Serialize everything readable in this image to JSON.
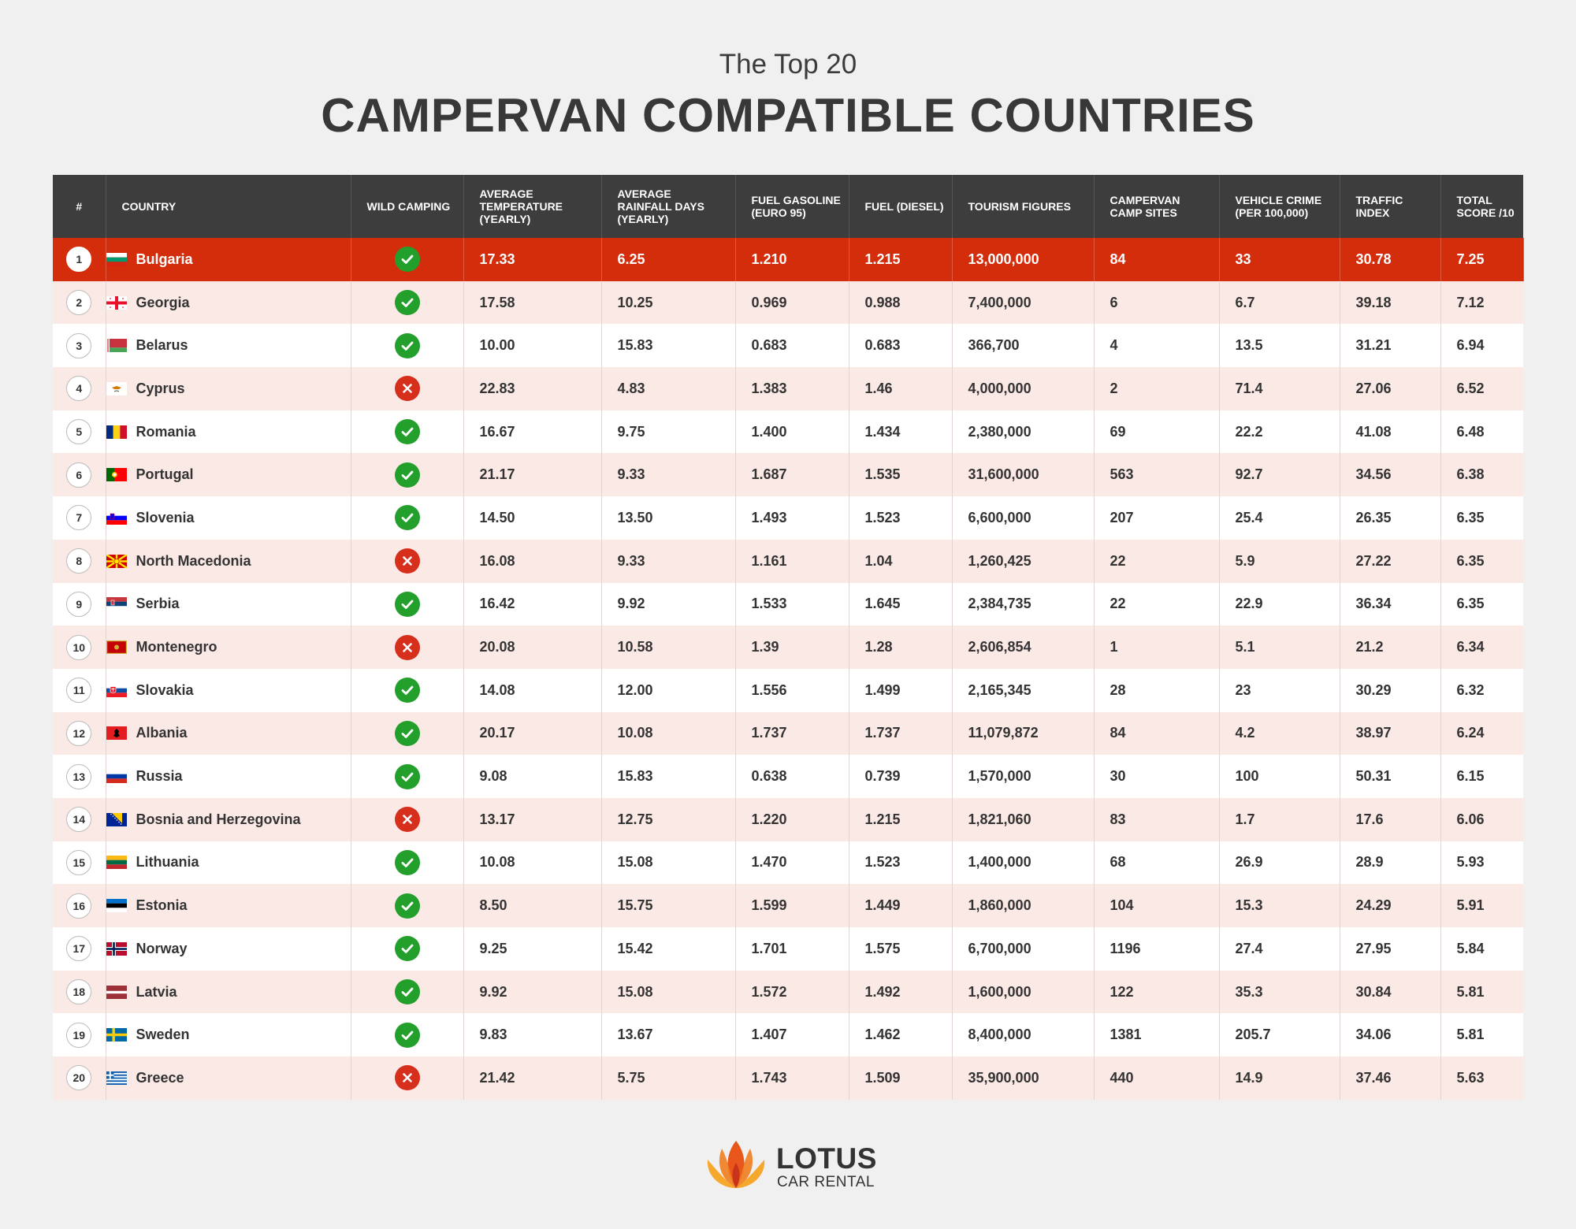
{
  "header": {
    "subtitle": "The Top 20",
    "title": "CAMPERVAN COMPATIBLE COUNTRIES"
  },
  "table": {
    "columns": [
      "#",
      "COUNTRY",
      "WILD CAMPING",
      "AVERAGE TEMPERATURE (YEARLY)",
      "AVERAGE RAINFALL DAYS (YEARLY)",
      "FUEL GASOLINE (EURO 95)",
      "FUEL (DIESEL)",
      "TOURISM FIGURES",
      "CAMPERVAN CAMP SITES",
      "VEHICLE CRIME (PER 100,000)",
      "TRAFFIC INDEX",
      "TOTAL SCORE /10"
    ],
    "rows": [
      {
        "rank": "1",
        "country": "Bulgaria",
        "flag": "bg-flag-icon",
        "wild": true,
        "temp": "17.33",
        "rain": "6.25",
        "gasoline": "1.210",
        "diesel": "1.215",
        "tourism": "13,000,000",
        "sites": "84",
        "crime": "33",
        "traffic": "30.78",
        "score": "7.25"
      },
      {
        "rank": "2",
        "country": "Georgia",
        "flag": "ge-flag-icon",
        "wild": true,
        "temp": "17.58",
        "rain": "10.25",
        "gasoline": "0.969",
        "diesel": "0.988",
        "tourism": "7,400,000",
        "sites": "6",
        "crime": "6.7",
        "traffic": "39.18",
        "score": "7.12"
      },
      {
        "rank": "3",
        "country": "Belarus",
        "flag": "by-flag-icon",
        "wild": true,
        "temp": "10.00",
        "rain": "15.83",
        "gasoline": "0.683",
        "diesel": "0.683",
        "tourism": "366,700",
        "sites": "4",
        "crime": "13.5",
        "traffic": "31.21",
        "score": "6.94"
      },
      {
        "rank": "4",
        "country": "Cyprus",
        "flag": "cy-flag-icon",
        "wild": false,
        "temp": "22.83",
        "rain": "4.83",
        "gasoline": "1.383",
        "diesel": "1.46",
        "tourism": "4,000,000",
        "sites": "2",
        "crime": "71.4",
        "traffic": "27.06",
        "score": "6.52"
      },
      {
        "rank": "5",
        "country": "Romania",
        "flag": "ro-flag-icon",
        "wild": true,
        "temp": "16.67",
        "rain": "9.75",
        "gasoline": "1.400",
        "diesel": "1.434",
        "tourism": "2,380,000",
        "sites": "69",
        "crime": "22.2",
        "traffic": "41.08",
        "score": "6.48"
      },
      {
        "rank": "6",
        "country": "Portugal",
        "flag": "pt-flag-icon",
        "wild": true,
        "temp": "21.17",
        "rain": "9.33",
        "gasoline": "1.687",
        "diesel": "1.535",
        "tourism": "31,600,000",
        "sites": "563",
        "crime": "92.7",
        "traffic": "34.56",
        "score": "6.38"
      },
      {
        "rank": "7",
        "country": "Slovenia",
        "flag": "si-flag-icon",
        "wild": true,
        "temp": "14.50",
        "rain": "13.50",
        "gasoline": "1.493",
        "diesel": "1.523",
        "tourism": "6,600,000",
        "sites": "207",
        "crime": "25.4",
        "traffic": "26.35",
        "score": "6.35"
      },
      {
        "rank": "8",
        "country": "North Macedonia",
        "flag": "mk-flag-icon",
        "wild": false,
        "temp": "16.08",
        "rain": "9.33",
        "gasoline": "1.161",
        "diesel": "1.04",
        "tourism": "1,260,425",
        "sites": "22",
        "crime": "5.9",
        "traffic": "27.22",
        "score": "6.35"
      },
      {
        "rank": "9",
        "country": "Serbia",
        "flag": "rs-flag-icon",
        "wild": true,
        "temp": "16.42",
        "rain": "9.92",
        "gasoline": "1.533",
        "diesel": "1.645",
        "tourism": "2,384,735",
        "sites": "22",
        "crime": "22.9",
        "traffic": "36.34",
        "score": "6.35"
      },
      {
        "rank": "10",
        "country": "Montenegro",
        "flag": "me-flag-icon",
        "wild": false,
        "temp": "20.08",
        "rain": "10.58",
        "gasoline": "1.39",
        "diesel": "1.28",
        "tourism": "2,606,854",
        "sites": "1",
        "crime": "5.1",
        "traffic": "21.2",
        "score": "6.34"
      },
      {
        "rank": "11",
        "country": "Slovakia",
        "flag": "sk-flag-icon",
        "wild": true,
        "temp": "14.08",
        "rain": "12.00",
        "gasoline": "1.556",
        "diesel": "1.499",
        "tourism": "2,165,345",
        "sites": "28",
        "crime": "23",
        "traffic": "30.29",
        "score": "6.32"
      },
      {
        "rank": "12",
        "country": "Albania",
        "flag": "al-flag-icon",
        "wild": true,
        "temp": "20.17",
        "rain": "10.08",
        "gasoline": "1.737",
        "diesel": "1.737",
        "tourism": "11,079,872",
        "sites": "84",
        "crime": "4.2",
        "traffic": "38.97",
        "score": "6.24"
      },
      {
        "rank": "13",
        "country": "Russia",
        "flag": "ru-flag-icon",
        "wild": true,
        "temp": "9.08",
        "rain": "15.83",
        "gasoline": "0.638",
        "diesel": "0.739",
        "tourism": "1,570,000",
        "sites": "30",
        "crime": "100",
        "traffic": "50.31",
        "score": "6.15"
      },
      {
        "rank": "14",
        "country": "Bosnia and Herzegovina",
        "flag": "ba-flag-icon",
        "wild": false,
        "temp": "13.17",
        "rain": "12.75",
        "gasoline": "1.220",
        "diesel": "1.215",
        "tourism": "1,821,060",
        "sites": "83",
        "crime": "1.7",
        "traffic": "17.6",
        "score": "6.06"
      },
      {
        "rank": "15",
        "country": "Lithuania",
        "flag": "lt-flag-icon",
        "wild": true,
        "temp": "10.08",
        "rain": "15.08",
        "gasoline": "1.470",
        "diesel": "1.523",
        "tourism": "1,400,000",
        "sites": "68",
        "crime": "26.9",
        "traffic": "28.9",
        "score": "5.93"
      },
      {
        "rank": "16",
        "country": "Estonia",
        "flag": "ee-flag-icon",
        "wild": true,
        "temp": "8.50",
        "rain": "15.75",
        "gasoline": "1.599",
        "diesel": "1.449",
        "tourism": "1,860,000",
        "sites": "104",
        "crime": "15.3",
        "traffic": "24.29",
        "score": "5.91"
      },
      {
        "rank": "17",
        "country": "Norway",
        "flag": "no-flag-icon",
        "wild": true,
        "temp": "9.25",
        "rain": "15.42",
        "gasoline": "1.701",
        "diesel": "1.575",
        "tourism": "6,700,000",
        "sites": "1196",
        "crime": "27.4",
        "traffic": "27.95",
        "score": "5.84"
      },
      {
        "rank": "18",
        "country": "Latvia",
        "flag": "lv-flag-icon",
        "wild": true,
        "temp": "9.92",
        "rain": "15.08",
        "gasoline": "1.572",
        "diesel": "1.492",
        "tourism": "1,600,000",
        "sites": "122",
        "crime": "35.3",
        "traffic": "30.84",
        "score": "5.81"
      },
      {
        "rank": "19",
        "country": "Sweden",
        "flag": "se-flag-icon",
        "wild": true,
        "temp": "9.83",
        "rain": "13.67",
        "gasoline": "1.407",
        "diesel": "1.462",
        "tourism": "8,400,000",
        "sites": "1381",
        "crime": "205.7",
        "traffic": "34.06",
        "score": "5.81"
      },
      {
        "rank": "20",
        "country": "Greece",
        "flag": "gr-flag-icon",
        "wild": false,
        "temp": "21.42",
        "rain": "5.75",
        "gasoline": "1.743",
        "diesel": "1.509",
        "tourism": "35,900,000",
        "sites": "440",
        "crime": "14.9",
        "traffic": "37.46",
        "score": "5.63"
      }
    ]
  },
  "logo": {
    "main": "LOTUS",
    "sub": "CAR RENTAL"
  },
  "colors": {
    "header_bg": "#3d3d3d",
    "highlight_row": "#d42d0b",
    "alt_row": "#fbe9e6",
    "yes": "#239f2b",
    "no": "#d62f1c"
  }
}
